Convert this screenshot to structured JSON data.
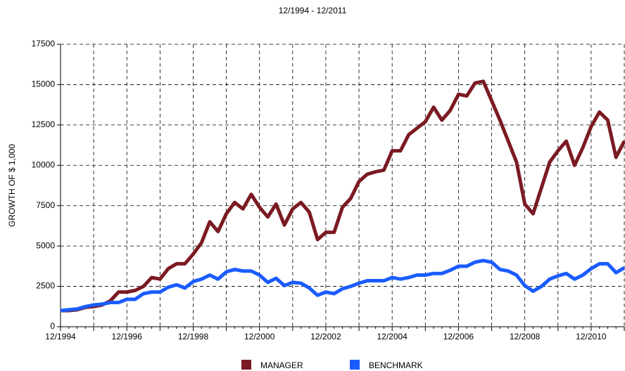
{
  "chart_data": {
    "type": "line",
    "title": "12/1994 - 12/2011",
    "y_label": "GROWTH OF $ 1,000",
    "categories": [
      "12/1994",
      null,
      null,
      null,
      null,
      null,
      null,
      null,
      "12/1996",
      null,
      null,
      null,
      null,
      null,
      null,
      null,
      "12/1998",
      null,
      null,
      null,
      null,
      null,
      null,
      null,
      "12/2000",
      null,
      null,
      null,
      null,
      null,
      null,
      null,
      "12/2002",
      null,
      null,
      null,
      null,
      null,
      null,
      null,
      "12/2004",
      null,
      null,
      null,
      null,
      null,
      null,
      null,
      "12/2006",
      null,
      null,
      null,
      null,
      null,
      null,
      null,
      "12/2008",
      null,
      null,
      null,
      null,
      null,
      null,
      null,
      "12/2010",
      null,
      null,
      null,
      null
    ],
    "series": [
      {
        "name": "MANAGER",
        "color": "#7b1a22",
        "values": [
          1000,
          1000,
          1050,
          1200,
          1250,
          1350,
          1600,
          2150,
          2150,
          2250,
          2500,
          3050,
          2950,
          3600,
          3900,
          3900,
          4500,
          5200,
          6500,
          5900,
          7000,
          7700,
          7300,
          8200,
          7400,
          6800,
          7600,
          6300,
          7300,
          7700,
          7100,
          5400,
          5850,
          5850,
          7400,
          7950,
          9000,
          9450,
          9600,
          9700,
          10900,
          10900,
          11900,
          12300,
          12700,
          13600,
          12800,
          13400,
          14400,
          14300,
          15100,
          15200,
          14000,
          12800,
          11500,
          10200,
          7600,
          7000,
          8600,
          10200,
          10900,
          11500,
          10000,
          11100,
          12400,
          13300,
          12800,
          10500,
          11500
        ]
      },
      {
        "name": "BENCHMARK",
        "color": "#1a5cff",
        "values": [
          1000,
          1050,
          1100,
          1250,
          1350,
          1400,
          1500,
          1500,
          1700,
          1700,
          2050,
          2150,
          2150,
          2450,
          2600,
          2400,
          2800,
          2950,
          3200,
          2950,
          3400,
          3550,
          3450,
          3450,
          3200,
          2750,
          3000,
          2550,
          2750,
          2700,
          2400,
          1950,
          2150,
          2050,
          2350,
          2500,
          2700,
          2850,
          2850,
          2850,
          3050,
          2950,
          3050,
          3200,
          3200,
          3300,
          3300,
          3500,
          3750,
          3750,
          4000,
          4100,
          4000,
          3550,
          3450,
          3200,
          2550,
          2200,
          2500,
          2950,
          3150,
          3300,
          2950,
          3200,
          3600,
          3900,
          3900,
          3350,
          3650
        ]
      }
    ],
    "ylim": [
      0,
      17500
    ],
    "yticks": [
      0,
      2500,
      5000,
      7500,
      10000,
      12500,
      15000,
      17500
    ],
    "grid": true
  }
}
